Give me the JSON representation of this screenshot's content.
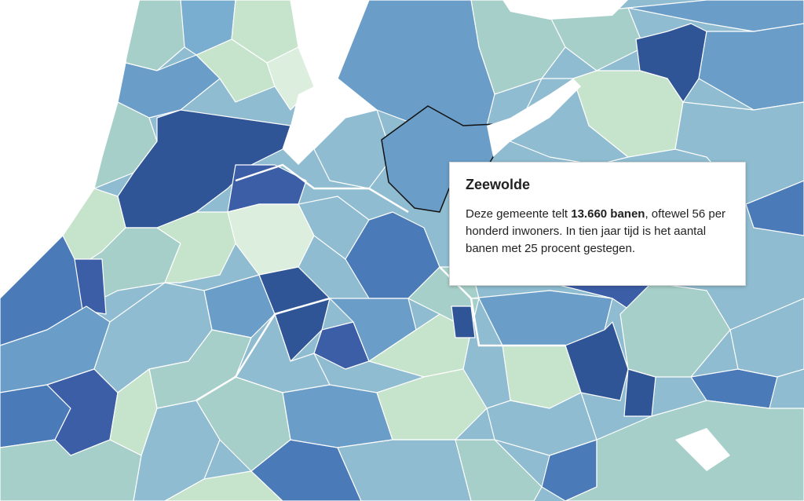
{
  "tooltip": {
    "title": "Zeewolde",
    "text_before": "Deze gemeente telt",
    "highlight": "13.660 banen",
    "text_after": ", oftewel 56 per honderd inwoners. In tien jaar tijd is het aantal banen met 25 procent gestegen."
  }
}
